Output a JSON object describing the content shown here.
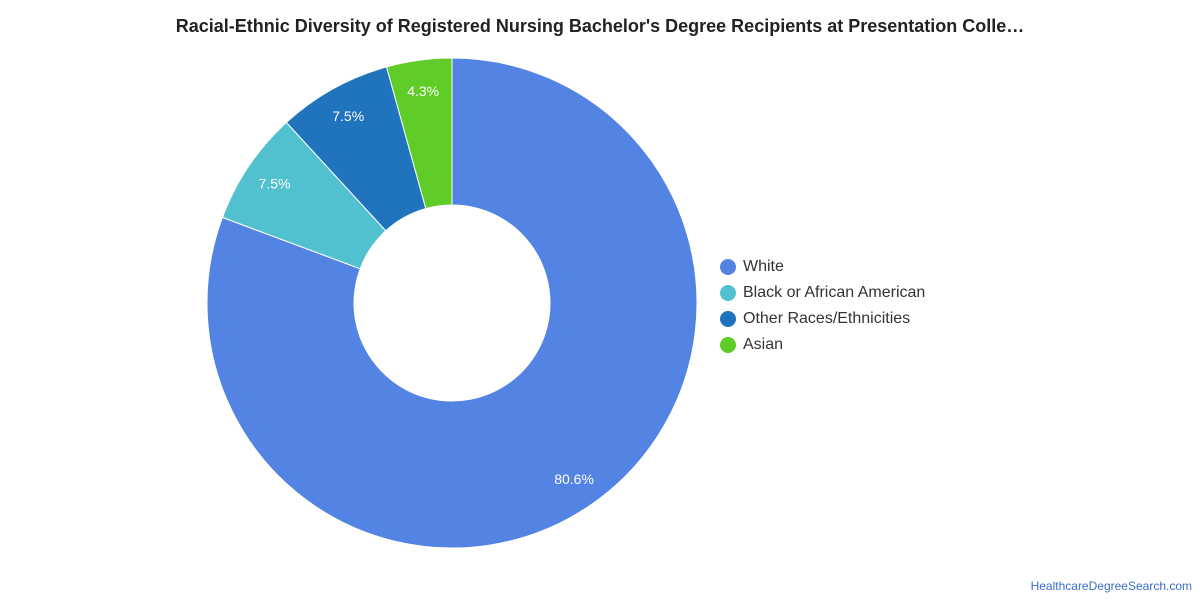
{
  "chart_data": {
    "type": "pie",
    "title": "Racial-Ethnic Diversity of Registered Nursing Bachelor's Degree Recipients at Presentation Colle…",
    "donut": true,
    "slices": [
      {
        "label": "White",
        "value": 80.6,
        "display": "80.6%",
        "color": "#5484e3"
      },
      {
        "label": "Black or African American",
        "value": 7.5,
        "display": "7.5%",
        "color": "#52c1cf"
      },
      {
        "label": "Other Races/Ethnicities",
        "value": 7.5,
        "display": "7.5%",
        "color": "#2073bd"
      },
      {
        "label": "Asian",
        "value": 4.3,
        "display": "4.3%",
        "color": "#60cc27"
      }
    ],
    "legend_position": "right"
  },
  "footer": {
    "source": "HealthcareDegreeSearch.com"
  }
}
